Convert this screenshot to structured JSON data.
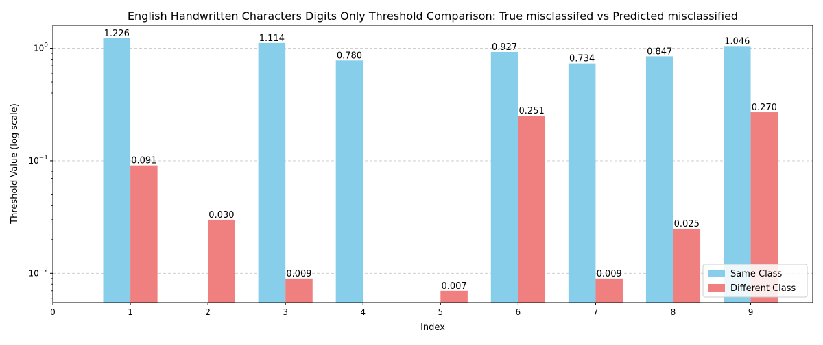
{
  "chart_data": {
    "type": "bar",
    "title": "English Handwritten Characters Digits Only Threshold Comparison: True misclassifed vs Predicted misclassified",
    "xlabel": "Index",
    "ylabel": "Threshold Value (log scale)",
    "yscale": "log",
    "ylim": [
      0.0055,
      1.6
    ],
    "xlim": [
      0,
      9.8
    ],
    "x_ticks": [
      "0",
      "1",
      "2",
      "3",
      "4",
      "5",
      "6",
      "7",
      "8",
      "9"
    ],
    "y_ticks": [
      {
        "base": "10",
        "exp": "0",
        "value": 1
      },
      {
        "base": "10",
        "exp": "−1",
        "value": 0.1
      },
      {
        "base": "10",
        "exp": "−2",
        "value": 0.01
      }
    ],
    "grid": "horizontal dashed",
    "legend_position": "lower-right",
    "bar_width": 0.35,
    "series": [
      {
        "name": "Same Class",
        "color": "#87CEEB",
        "offset": -0.175,
        "x": [
          1,
          3,
          4,
          6,
          7,
          8,
          9
        ],
        "values": [
          1.226,
          1.114,
          0.78,
          0.927,
          0.734,
          0.847,
          1.046
        ],
        "labels": [
          "1.226",
          "1.114",
          "0.780",
          "0.927",
          "0.734",
          "0.847",
          "1.046"
        ]
      },
      {
        "name": "Different Class",
        "color": "#F08080",
        "offset": 0.175,
        "x": [
          1,
          2,
          3,
          5,
          6,
          7,
          8,
          9
        ],
        "values": [
          0.091,
          0.03,
          0.009,
          0.007,
          0.251,
          0.009,
          0.025,
          0.27
        ],
        "labels": [
          "0.091",
          "0.030",
          "0.009",
          "0.007",
          "0.251",
          "0.009",
          "0.025",
          "0.270"
        ]
      }
    ]
  }
}
